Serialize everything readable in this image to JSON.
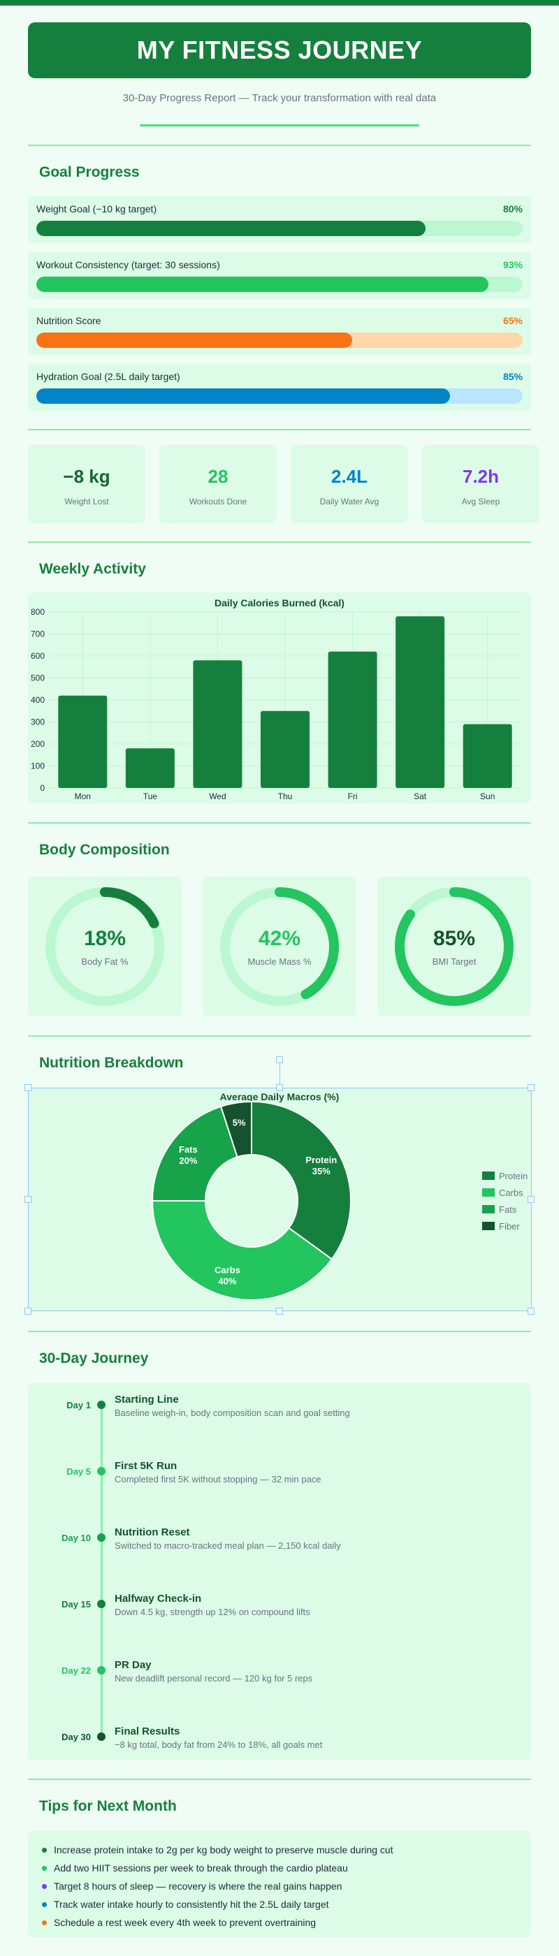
{
  "header": {
    "title": "MY FITNESS JOURNEY",
    "subtitle": "30-Day Progress Report — Track your transformation with real data"
  },
  "goal_progress": {
    "title": "Goal Progress",
    "goals": [
      {
        "label": "Weight Goal (−10 kg target)",
        "percent_label": "80%",
        "value": 80,
        "color": "#15803d",
        "track": "#bbf7d0"
      },
      {
        "label": "Workout Consistency (target: 30 sessions)",
        "percent_label": "93%",
        "value": 93,
        "color": "#22c55e",
        "track": "#bbf7d0"
      },
      {
        "label": "Nutrition Score",
        "percent_label": "65%",
        "value": 65,
        "color": "#f97316",
        "track": "#fed7aa"
      },
      {
        "label": "Hydration Goal (2.5L daily target)",
        "percent_label": "85%",
        "value": 85,
        "color": "#0284c7",
        "track": "#bae6fd"
      }
    ]
  },
  "stats": [
    {
      "value": "−8 kg",
      "label": "Weight Lost",
      "color": "#166534"
    },
    {
      "value": "28",
      "label": "Workouts Done",
      "color": "#22c55e"
    },
    {
      "value": "2.4L",
      "label": "Daily Water Avg",
      "color": "#0284c7"
    },
    {
      "value": "7.2h",
      "label": "Avg Sleep",
      "color": "#7c3aed"
    }
  ],
  "weekly_activity": {
    "title": "Weekly Activity"
  },
  "chart_data": [
    {
      "type": "bar",
      "title": "Daily Calories Burned (kcal)",
      "categories": [
        "Mon",
        "Tue",
        "Wed",
        "Thu",
        "Fri",
        "Sat",
        "Sun"
      ],
      "values": [
        420,
        180,
        580,
        350,
        620,
        780,
        290
      ],
      "ylim": [
        0,
        800
      ],
      "yticks": [
        "0",
        "100",
        "200",
        "300",
        "400",
        "500",
        "600",
        "700",
        "800"
      ],
      "grid": true,
      "color": "#15803d"
    },
    {
      "type": "pie",
      "title": "Average Daily Macros (%)",
      "donut": true,
      "legend": "right",
      "slices": [
        {
          "name": "Protein",
          "value": 35,
          "label": "35%",
          "color": "#15803d"
        },
        {
          "name": "Carbs",
          "value": 40,
          "label": "40%",
          "color": "#22c55e"
        },
        {
          "name": "Fats",
          "value": 20,
          "label": "20%",
          "color": "#16a34a"
        },
        {
          "name": "Fiber",
          "value": 5,
          "label": "5%",
          "color": "#14532d"
        }
      ]
    }
  ],
  "body_composition": {
    "title": "Body Composition",
    "items": [
      {
        "value": "18%",
        "label": "Body Fat %",
        "fraction": 0.18,
        "color": "#15803d"
      },
      {
        "value": "42%",
        "label": "Muscle Mass %",
        "fraction": 0.42,
        "color": "#22c55e"
      },
      {
        "value": "85%",
        "label": "BMI Target",
        "fraction": 0.85,
        "color": "#22c55e"
      }
    ]
  },
  "nutrition": {
    "title": "Nutrition Breakdown"
  },
  "journey": {
    "title": "30-Day Journey",
    "milestones": [
      {
        "day": "Day 1",
        "title": "Starting Line",
        "desc": "Baseline weigh-in, body composition scan and goal setting",
        "color": "#15803d"
      },
      {
        "day": "Day 5",
        "title": "First 5K Run",
        "desc": "Completed first 5K without stopping — 32 min pace",
        "color": "#22c55e"
      },
      {
        "day": "Day 10",
        "title": "Nutrition Reset",
        "desc": "Switched to macro-tracked meal plan — 2,150 kcal daily",
        "color": "#16a34a"
      },
      {
        "day": "Day 15",
        "title": "Halfway Check-in",
        "desc": "Down 4.5 kg, strength up 12% on compound lifts",
        "color": "#15803d"
      },
      {
        "day": "Day 22",
        "title": "PR Day",
        "desc": "New deadlift personal record — 120 kg for 5 reps",
        "color": "#22c55e"
      },
      {
        "day": "Day 30",
        "title": "Final Results",
        "desc": "−8 kg total, body fat from 24% to 18%, all goals met",
        "color": "#14532d"
      }
    ]
  },
  "tips": {
    "title": "Tips for Next Month",
    "items": [
      {
        "text": "Increase protein intake to 2g per kg body weight to preserve muscle during cut",
        "color": "#15803d"
      },
      {
        "text": "Add two HIIT sessions per week to break through the cardio plateau",
        "color": "#22c55e"
      },
      {
        "text": "Target 8 hours of sleep — recovery is where the real gains happen",
        "color": "#7c3aed"
      },
      {
        "text": "Track water intake hourly to consistently hit the 2.5L daily target",
        "color": "#0284c7"
      },
      {
        "text": "Schedule a rest week every 4th week to prevent overtraining",
        "color": "#f97316"
      }
    ]
  }
}
